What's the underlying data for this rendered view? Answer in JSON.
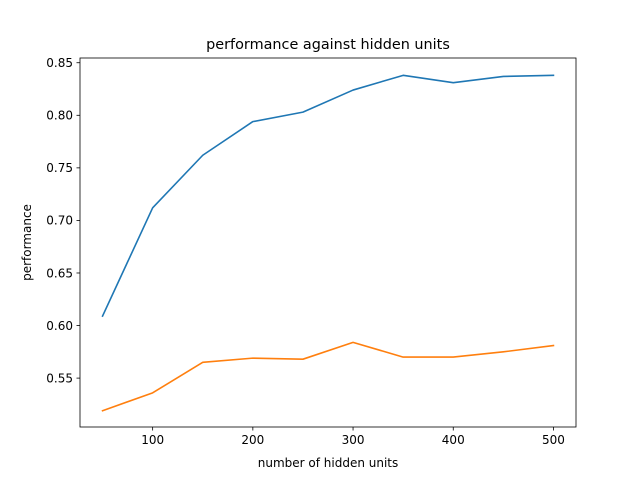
{
  "chart_data": {
    "type": "line",
    "title": "performance against hidden units",
    "xlabel": "number of hidden units",
    "ylabel": "performance",
    "xlim": [
      27.5,
      522.5
    ],
    "ylim": [
      0.5035,
      0.8545
    ],
    "xticks": [
      100,
      200,
      300,
      400,
      500
    ],
    "yticks": [
      0.55,
      0.6,
      0.65,
      0.7,
      0.75,
      0.8,
      0.85
    ],
    "ytick_decimals": 2,
    "grid": false,
    "legend": "none",
    "x": [
      50,
      100,
      150,
      200,
      250,
      300,
      350,
      400,
      450,
      500
    ],
    "series": [
      {
        "color": "#1f77b4",
        "values": [
          0.609,
          0.712,
          0.762,
          0.794,
          0.803,
          0.824,
          0.838,
          0.831,
          0.837,
          0.838
        ]
      },
      {
        "color": "#ff7f0e",
        "values": [
          0.519,
          0.536,
          0.565,
          0.569,
          0.568,
          0.584,
          0.57,
          0.57,
          0.575,
          0.581
        ]
      }
    ]
  }
}
